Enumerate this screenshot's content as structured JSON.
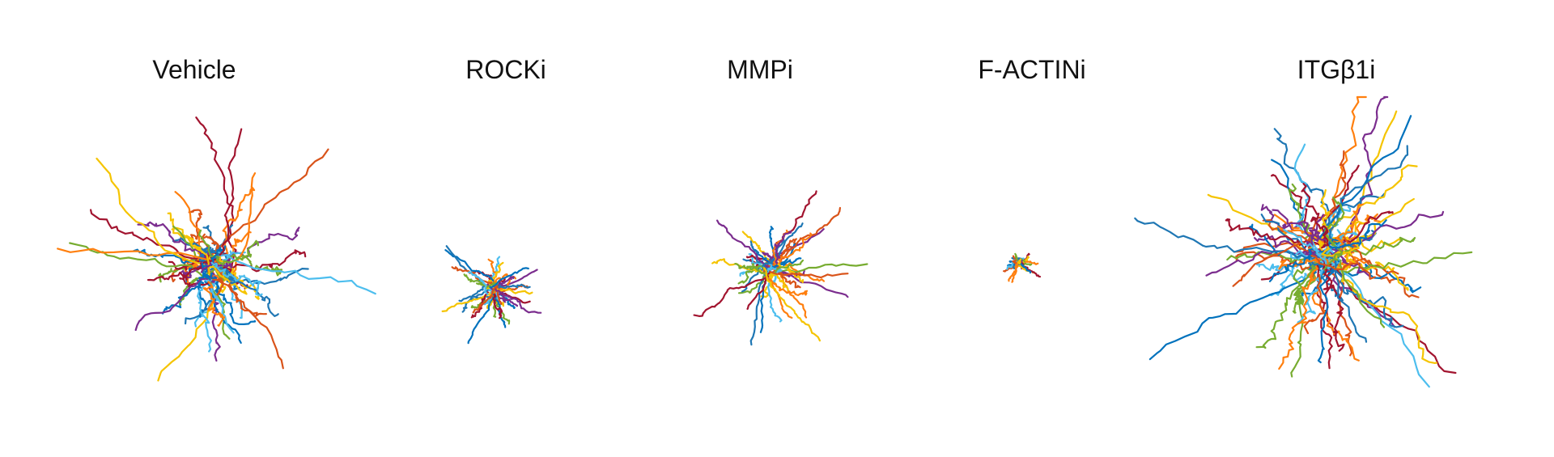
{
  "chart_data": {
    "type": "scatter",
    "panels": [
      {
        "title": "Vehicle",
        "track_count": 70,
        "spread": 1.0
      },
      {
        "title": "ROCKi",
        "track_count": 45,
        "spread": 0.42
      },
      {
        "title": "MMPi",
        "track_count": 50,
        "spread": 0.58
      },
      {
        "title": "F-ACTINi",
        "track_count": 30,
        "spread": 0.14
      },
      {
        "title": "ITGβ1i",
        "track_count": 90,
        "spread": 1.3
      }
    ],
    "colors": [
      "#1f77b4",
      "#ff7f0e",
      "#f5c400",
      "#7b2d8e",
      "#77ac30",
      "#4dbeee",
      "#a2142f",
      "#d95319",
      "#0072bd"
    ],
    "grid": false,
    "legend": "none",
    "axes_visible": false
  }
}
